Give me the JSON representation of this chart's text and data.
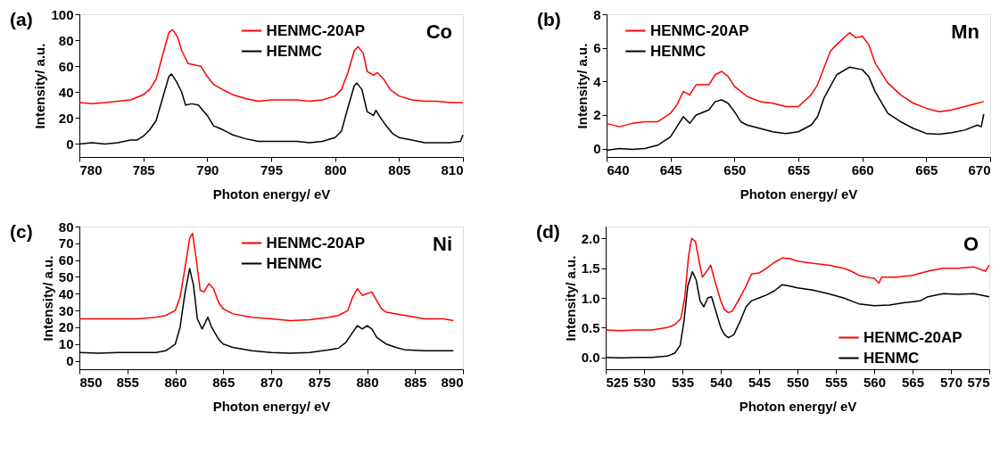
{
  "chart_data": [
    {
      "type": "line",
      "annotations": [
        "(a)",
        "Co"
      ],
      "xlabel": "Photon energy/ eV",
      "ylabel": "Intensity/ a.u.",
      "xlim": [
        780,
        810
      ],
      "xticks": [
        780,
        785,
        790,
        795,
        800,
        805,
        810
      ],
      "ylim": [
        -10,
        100
      ],
      "yticks": [
        0,
        20,
        40,
        60,
        80,
        100
      ],
      "legend": "top",
      "series": [
        {
          "name": "HENMC-20AP",
          "color": "#ff0000",
          "x": [
            780,
            781,
            782,
            783,
            784,
            785,
            785.5,
            786,
            786.5,
            787,
            787.3,
            787.7,
            788,
            788.5,
            789,
            789.5,
            790,
            790.5,
            791,
            792,
            793,
            794,
            795,
            796,
            797,
            798,
            799,
            800,
            800.5,
            801,
            801.5,
            801.8,
            802.2,
            802.5,
            803,
            803.3,
            803.8,
            804.3,
            805,
            806,
            807,
            808,
            809,
            810
          ],
          "values": [
            32,
            31,
            32,
            33,
            34,
            38,
            42,
            50,
            68,
            86,
            88,
            82,
            72,
            62,
            61,
            60,
            52,
            46,
            43,
            38,
            35,
            33,
            34,
            34,
            34,
            33,
            34,
            37,
            42,
            55,
            72,
            75,
            70,
            56,
            53,
            55,
            50,
            42,
            37,
            34,
            33,
            33,
            32,
            32
          ]
        },
        {
          "name": "HENMC",
          "color": "#000000",
          "x": [
            780,
            781,
            782,
            783,
            784,
            784.5,
            785,
            785.5,
            786,
            786.5,
            787,
            787.2,
            787.6,
            788,
            788.3,
            788.8,
            789.3,
            790,
            790.5,
            791,
            792,
            793,
            794,
            795,
            796,
            797,
            798,
            799,
            800,
            800.5,
            801,
            801.5,
            801.7,
            802.1,
            802.5,
            803,
            803.2,
            803.5,
            804,
            804.5,
            805,
            806,
            807,
            808,
            809,
            809.8,
            810
          ],
          "values": [
            0,
            1,
            0,
            1,
            3,
            3,
            6,
            11,
            18,
            35,
            52,
            54,
            48,
            40,
            30,
            31,
            30,
            22,
            14,
            12,
            7,
            4,
            2,
            2,
            2,
            2,
            1,
            2,
            5,
            10,
            28,
            45,
            47,
            42,
            25,
            22,
            26,
            21,
            14,
            8,
            5,
            3,
            1,
            1,
            1,
            2,
            7
          ]
        }
      ]
    },
    {
      "type": "line",
      "annotations": [
        "(b)",
        "Mn"
      ],
      "xlabel": "Photon energy/ eV",
      "ylabel": "Intensity/ a.u.",
      "xlim": [
        640,
        670
      ],
      "xticks": [
        640,
        645,
        650,
        655,
        660,
        665,
        670
      ],
      "ylim": [
        -0.5,
        8
      ],
      "yticks": [
        0,
        2,
        4,
        6,
        8
      ],
      "legend": "top left",
      "series": [
        {
          "name": "HENMC-20AP",
          "color": "#ff0000",
          "x": [
            640,
            641,
            642,
            643,
            644,
            645,
            645.5,
            646,
            646.5,
            647,
            648,
            648.5,
            649,
            649.5,
            650,
            651,
            652,
            653,
            654,
            655,
            656,
            656.5,
            657,
            657.5,
            658,
            659,
            659.5,
            660,
            660.5,
            661,
            662,
            663,
            664,
            665,
            666,
            667,
            668,
            669,
            669.5
          ],
          "values": [
            1.5,
            1.3,
            1.5,
            1.6,
            1.6,
            2.1,
            2.6,
            3.4,
            3.2,
            3.8,
            3.8,
            4.4,
            4.6,
            4.3,
            3.7,
            3.1,
            2.8,
            2.7,
            2.5,
            2.5,
            3.2,
            3.8,
            4.8,
            5.8,
            6.2,
            6.9,
            6.6,
            6.7,
            6.2,
            5.1,
            3.9,
            3.2,
            2.7,
            2.4,
            2.2,
            2.3,
            2.5,
            2.7,
            2.8
          ]
        },
        {
          "name": "HENMC",
          "color": "#000000",
          "x": [
            640,
            641,
            642,
            643,
            644,
            645,
            645.5,
            646,
            646.5,
            647,
            648,
            648.5,
            649,
            649.5,
            650,
            650.5,
            651,
            652,
            653,
            654,
            655,
            656,
            656.5,
            657,
            657.5,
            658,
            659,
            660,
            660.5,
            661,
            662,
            663,
            664,
            665,
            666,
            667,
            668,
            669,
            669.3,
            669.5
          ],
          "values": [
            -0.1,
            0,
            -0.05,
            0,
            0.2,
            0.7,
            1.3,
            1.9,
            1.5,
            2.0,
            2.3,
            2.8,
            2.9,
            2.7,
            2.2,
            1.6,
            1.4,
            1.2,
            1.0,
            0.9,
            1.0,
            1.4,
            1.9,
            3.0,
            3.7,
            4.4,
            4.85,
            4.7,
            4.3,
            3.4,
            2.1,
            1.6,
            1.2,
            0.9,
            0.85,
            0.95,
            1.1,
            1.4,
            1.3,
            2.05
          ]
        }
      ]
    },
    {
      "type": "line",
      "annotations": [
        "(c)",
        "Ni"
      ],
      "xlabel": "Photon energy/ eV",
      "ylabel": "Intensity/ a.u.",
      "xlim": [
        850,
        890
      ],
      "xticks": [
        850,
        855,
        860,
        865,
        870,
        875,
        880,
        885,
        890
      ],
      "ylim": [
        -5,
        80
      ],
      "yticks": [
        0,
        10,
        20,
        30,
        40,
        50,
        60,
        70,
        80
      ],
      "legend": "top",
      "series": [
        {
          "name": "HENMC-20AP",
          "color": "#ff0000",
          "x": [
            850,
            852,
            854,
            856,
            858,
            859,
            860,
            860.5,
            861,
            861.5,
            861.8,
            862.2,
            862.6,
            863,
            863.5,
            864,
            864.5,
            865,
            866,
            868,
            870,
            872,
            874,
            876,
            877,
            878,
            878.5,
            879,
            879.5,
            880,
            880.5,
            881,
            881.5,
            882,
            884,
            886,
            888,
            889
          ],
          "values": [
            25,
            25,
            25,
            25,
            26,
            27,
            30,
            38,
            55,
            73,
            76,
            60,
            42,
            41,
            46,
            43,
            35,
            31,
            28,
            26,
            25,
            24,
            24.5,
            26,
            27,
            30,
            38,
            43,
            39,
            40,
            41,
            36,
            31,
            29,
            27,
            25,
            25,
            24
          ]
        },
        {
          "name": "HENMC",
          "color": "#000000",
          "x": [
            850,
            852,
            854,
            856,
            858,
            859,
            860,
            860.5,
            861,
            861.5,
            861.9,
            862.3,
            862.8,
            863.4,
            863.8,
            864.5,
            865,
            866,
            868,
            870,
            872,
            874,
            876,
            877,
            877.8,
            878.5,
            879,
            879.5,
            880,
            880.5,
            881,
            882,
            883,
            884,
            886,
            888,
            889
          ],
          "values": [
            5,
            4.5,
            5,
            5,
            5,
            6,
            10,
            20,
            40,
            55,
            45,
            25,
            19,
            26,
            20,
            13,
            10,
            8,
            6,
            5,
            4.5,
            5,
            6.5,
            7.5,
            11,
            17,
            21,
            19,
            21,
            19,
            14,
            10,
            8,
            6.5,
            6,
            6,
            6
          ]
        }
      ]
    },
    {
      "type": "line",
      "annotations": [
        "(d)",
        "O"
      ],
      "xlabel": "Photon energy/ eV",
      "ylabel": "Intensity/ a.u.",
      "xlim": [
        525,
        575
      ],
      "xticks": [
        525,
        530,
        535,
        540,
        545,
        550,
        555,
        560,
        565,
        570,
        575
      ],
      "ylim": [
        -0.2,
        2.2
      ],
      "yticks": [
        {
          "value": 0,
          "label": "0.0"
        },
        0.5,
        {
          "value": 1,
          "label": "1.0"
        },
        1.5,
        {
          "value": 2,
          "label": "2.0"
        }
      ],
      "legend": "bottom right",
      "series": [
        {
          "name": "HENMC-20AP",
          "color": "#ff0000",
          "x": [
            525,
            527,
            529,
            531,
            533,
            534,
            534.8,
            535.3,
            535.8,
            536.2,
            536.7,
            537.2,
            537.6,
            538.2,
            538.7,
            539.2,
            540,
            540.5,
            541,
            541.5,
            542.5,
            543.3,
            544,
            545,
            546,
            547,
            548,
            549,
            550,
            552,
            554,
            556,
            557,
            558,
            559,
            560,
            560.6,
            561,
            563,
            565,
            567,
            569,
            571,
            573,
            574.5,
            575
          ],
          "values": [
            0.46,
            0.45,
            0.46,
            0.46,
            0.5,
            0.55,
            0.65,
            1.0,
            1.7,
            2.0,
            1.95,
            1.6,
            1.35,
            1.45,
            1.55,
            1.3,
            0.95,
            0.8,
            0.75,
            0.78,
            1.0,
            1.2,
            1.4,
            1.42,
            1.5,
            1.6,
            1.67,
            1.66,
            1.62,
            1.58,
            1.55,
            1.5,
            1.45,
            1.38,
            1.35,
            1.33,
            1.25,
            1.35,
            1.35,
            1.38,
            1.45,
            1.5,
            1.5,
            1.52,
            1.45,
            1.55
          ]
        },
        {
          "name": "HENMC",
          "color": "#000000",
          "x": [
            525,
            527,
            529,
            531,
            533,
            534,
            534.7,
            535.2,
            535.7,
            536.3,
            536.8,
            537.3,
            537.8,
            538.3,
            538.8,
            539.3,
            540,
            540.5,
            541,
            541.7,
            542.5,
            543.3,
            544,
            545,
            546,
            547,
            548,
            549,
            550,
            552,
            554,
            556,
            557,
            558,
            560,
            562,
            564,
            566,
            567,
            569,
            571,
            573,
            575
          ],
          "values": [
            0,
            -0.01,
            0,
            0,
            0.02,
            0.07,
            0.2,
            0.6,
            1.2,
            1.44,
            1.3,
            0.95,
            0.85,
            1.0,
            1.02,
            0.8,
            0.5,
            0.38,
            0.33,
            0.38,
            0.6,
            0.85,
            0.95,
            1.0,
            1.05,
            1.12,
            1.22,
            1.2,
            1.17,
            1.13,
            1.07,
            1.0,
            0.95,
            0.9,
            0.87,
            0.88,
            0.92,
            0.95,
            1.02,
            1.07,
            1.06,
            1.07,
            1.02
          ]
        }
      ]
    }
  ]
}
